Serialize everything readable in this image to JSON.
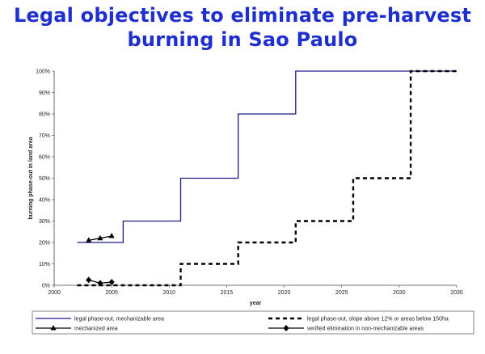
{
  "title_line1": "Legal objectives to eliminate pre-harvest",
  "title_line2": "burning in Sao Paulo",
  "chart_data": {
    "type": "line",
    "xlabel": "year",
    "ylabel": "burning phase-out in land area",
    "xlim": [
      2000,
      2035
    ],
    "ylim": [
      0,
      100
    ],
    "x_ticks": [
      "2000",
      "2005",
      "2010",
      "2015",
      "2020",
      "2025",
      "2030",
      "2035"
    ],
    "y_ticks": [
      "0%",
      "10%",
      "20%",
      "30%",
      "40%",
      "50%",
      "60%",
      "70%",
      "80%",
      "90%",
      "100%"
    ],
    "grid": false,
    "legend": "bottom",
    "series": [
      {
        "name": "legal phase-out, mechanizable area",
        "style": "solid",
        "color": "#1a1a8c",
        "points": [
          [
            2002,
            20
          ],
          [
            2006,
            20
          ],
          [
            2006,
            30
          ],
          [
            2011,
            30
          ],
          [
            2011,
            50
          ],
          [
            2016,
            50
          ],
          [
            2016,
            80
          ],
          [
            2021,
            80
          ],
          [
            2021,
            100
          ],
          [
            2035,
            100
          ]
        ]
      },
      {
        "name": "legal phase-out, slope above 12% or areas below 150ha",
        "style": "dashed",
        "color": "#000000",
        "points": [
          [
            2002,
            0
          ],
          [
            2011,
            0
          ],
          [
            2011,
            10
          ],
          [
            2016,
            10
          ],
          [
            2016,
            20
          ],
          [
            2021,
            20
          ],
          [
            2021,
            30
          ],
          [
            2026,
            30
          ],
          [
            2026,
            50
          ],
          [
            2031,
            50
          ],
          [
            2031,
            100
          ],
          [
            2035,
            100
          ]
        ]
      },
      {
        "name": "mechanized area",
        "style": "solid-triangle",
        "color": "#000000",
        "points": [
          [
            2003,
            21
          ],
          [
            2004,
            22
          ],
          [
            2005,
            23
          ]
        ]
      },
      {
        "name": "verified elimination in non-mechanizable areas",
        "style": "solid-diamond",
        "color": "#000000",
        "points": [
          [
            2003,
            2.5
          ],
          [
            2004,
            1
          ],
          [
            2005,
            1.5
          ]
        ]
      }
    ]
  }
}
